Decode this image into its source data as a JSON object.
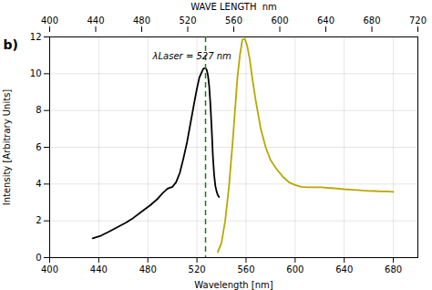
{
  "chart_data": {
    "type": "line",
    "panel_label": "b)",
    "xlabel": "Wavelength [nm]",
    "ylabel": "Intensity [Arbitrary Units]",
    "xlim": [
      400,
      700
    ],
    "ylim": [
      0,
      12
    ],
    "xticks": [
      400,
      440,
      480,
      520,
      560,
      600,
      640,
      680
    ],
    "yticks": [
      0,
      2,
      4,
      6,
      8,
      10,
      12
    ],
    "x2label": "WAVE LENGTH  nm",
    "x2lim": [
      400,
      720
    ],
    "x2ticks": [
      400,
      440,
      480,
      520,
      560,
      600,
      640,
      680,
      720
    ],
    "grid": true,
    "series": [
      {
        "color": "#000000",
        "x": [
          435,
          442,
          448,
          455,
          462,
          468,
          475,
          482,
          488,
          492,
          496,
          500,
          503,
          506,
          509,
          512,
          515,
          518,
          520,
          522,
          524,
          525,
          526,
          527,
          528,
          529,
          530,
          531,
          532,
          533,
          534,
          535,
          536,
          537,
          538
        ],
        "values": [
          1.05,
          1.2,
          1.4,
          1.65,
          1.9,
          2.15,
          2.5,
          2.85,
          3.2,
          3.5,
          3.75,
          3.85,
          4.1,
          4.6,
          5.4,
          6.3,
          7.4,
          8.5,
          9.2,
          9.8,
          10.1,
          10.25,
          10.3,
          10.3,
          10.2,
          9.9,
          9.3,
          8.3,
          7.0,
          5.5,
          4.5,
          3.9,
          3.6,
          3.4,
          3.3
        ]
      },
      {
        "color": "#b8a800",
        "x": [
          537,
          540,
          543,
          546,
          549,
          551,
          553,
          555,
          557,
          559,
          561,
          563,
          565,
          568,
          572,
          576,
          580,
          585,
          590,
          595,
          600,
          605,
          610,
          615,
          620,
          622,
          625,
          628,
          630,
          635,
          640,
          645,
          650,
          655,
          660,
          665,
          670,
          675,
          680
        ],
        "values": [
          0.3,
          0.8,
          2.0,
          3.8,
          6.2,
          8.0,
          9.8,
          11.0,
          11.85,
          11.9,
          11.5,
          10.8,
          9.8,
          8.5,
          7.0,
          6.0,
          5.3,
          4.8,
          4.4,
          4.1,
          3.95,
          3.85,
          3.82,
          3.82,
          3.82,
          3.82,
          3.8,
          3.78,
          3.78,
          3.75,
          3.72,
          3.7,
          3.68,
          3.65,
          3.63,
          3.62,
          3.6,
          3.6,
          3.58
        ]
      }
    ],
    "annotations": [
      {
        "type": "vline",
        "x": 527,
        "color": "#1a7a1a",
        "line_style": "dashed"
      },
      {
        "type": "text",
        "text": "λLaser = 527 nm"
      }
    ]
  }
}
